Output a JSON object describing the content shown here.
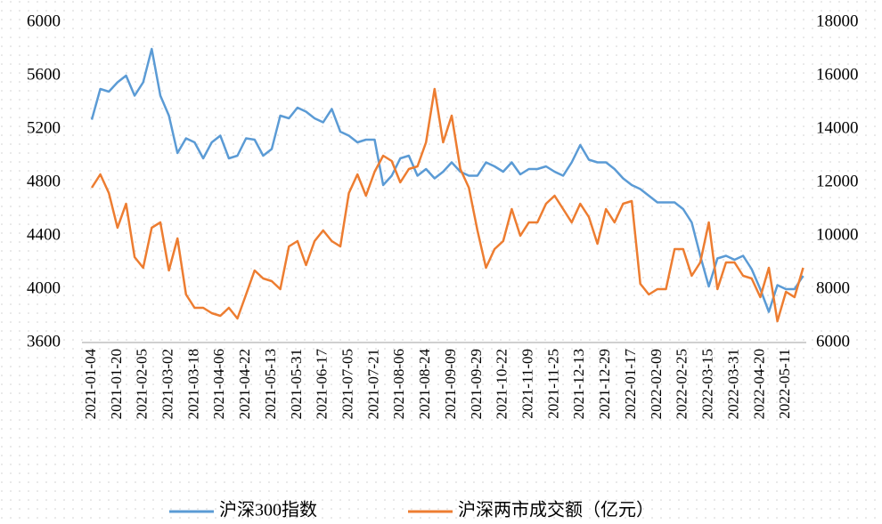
{
  "chart_data": {
    "type": "line",
    "categories": [
      "2021-01-04",
      null,
      null,
      "2021-01-20",
      null,
      null,
      "2021-02-05",
      null,
      null,
      "2021-03-02",
      null,
      null,
      "2021-03-18",
      null,
      null,
      "2021-04-06",
      null,
      null,
      "2021-04-22",
      null,
      null,
      "2021-05-13",
      null,
      null,
      "2021-05-31",
      null,
      null,
      "2021-06-17",
      null,
      null,
      "2021-07-05",
      null,
      null,
      "2021-07-21",
      null,
      null,
      "2021-08-06",
      null,
      null,
      "2021-08-24",
      null,
      null,
      "2021-09-09",
      null,
      null,
      "2021-09-29",
      null,
      null,
      "2021-10-22",
      null,
      null,
      "2021-11-09",
      null,
      null,
      "2021-11-25",
      null,
      null,
      "2021-12-13",
      null,
      null,
      "2021-12-29",
      null,
      null,
      "2022-01-17",
      null,
      null,
      "2022-02-09",
      null,
      null,
      "2022-02-25",
      null,
      null,
      "2022-03-15",
      null,
      null,
      "2022-03-31",
      null,
      null,
      "2022-04-20",
      null,
      null,
      "2022-05-11",
      null,
      null
    ],
    "series": [
      {
        "name": "沪深300指数",
        "color": "#5b9bd5",
        "values": [
          5270,
          5500,
          5480,
          5550,
          5600,
          5450,
          5550,
          5800,
          5450,
          5300,
          5020,
          5130,
          5100,
          4980,
          5100,
          5150,
          4980,
          5000,
          5130,
          5120,
          5000,
          5050,
          5300,
          5280,
          5360,
          5330,
          5280,
          5250,
          5350,
          5180,
          5150,
          5100,
          5120,
          5120,
          4780,
          4850,
          4980,
          5000,
          4850,
          4900,
          4830,
          4880,
          4950,
          4880,
          4850,
          4850,
          4950,
          4920,
          4880,
          4950,
          4860,
          4900,
          4900,
          4920,
          4880,
          4850,
          4950,
          5080,
          4970,
          4950,
          4950,
          4900,
          4830,
          4780,
          4750,
          4700,
          4650,
          4650,
          4650,
          4600,
          4500,
          4250,
          4020,
          4230,
          4250,
          4220,
          4250,
          4150,
          4000,
          3830,
          4030,
          4000,
          4000,
          4100
        ]
      },
      {
        "name": "沪深两市成交额（亿元）",
        "color": "#ed7d31",
        "axis": "y2",
        "values": [
          11800,
          12300,
          11600,
          10300,
          11200,
          9200,
          8800,
          10300,
          10500,
          8700,
          9900,
          7800,
          7300,
          7300,
          7100,
          7000,
          7300,
          6900,
          7800,
          8700,
          8400,
          8300,
          8000,
          9600,
          9800,
          8900,
          9800,
          10200,
          9800,
          9600,
          11600,
          12300,
          11500,
          12400,
          13000,
          12800,
          12000,
          12500,
          12600,
          13500,
          15500,
          13500,
          14500,
          12500,
          11800,
          10200,
          8800,
          9500,
          9800,
          11000,
          10000,
          10500,
          10500,
          11200,
          11500,
          11000,
          10500,
          11200,
          10700,
          9700,
          11000,
          10500,
          11200,
          11300,
          8200,
          7800,
          8000,
          8000,
          9500,
          9500,
          8500,
          9000,
          10500,
          8000,
          9000,
          9000,
          8500,
          8400,
          7700,
          8800,
          6800,
          7900,
          7700,
          8800
        ]
      }
    ],
    "ylim": [
      3600,
      6000
    ],
    "yticks": [
      3600,
      4000,
      4400,
      4800,
      5200,
      5600,
      6000
    ],
    "y2lim": [
      6000,
      18000
    ],
    "y2ticks": [
      6000,
      8000,
      10000,
      12000,
      14000,
      16000,
      18000
    ],
    "legend": "bottom"
  }
}
